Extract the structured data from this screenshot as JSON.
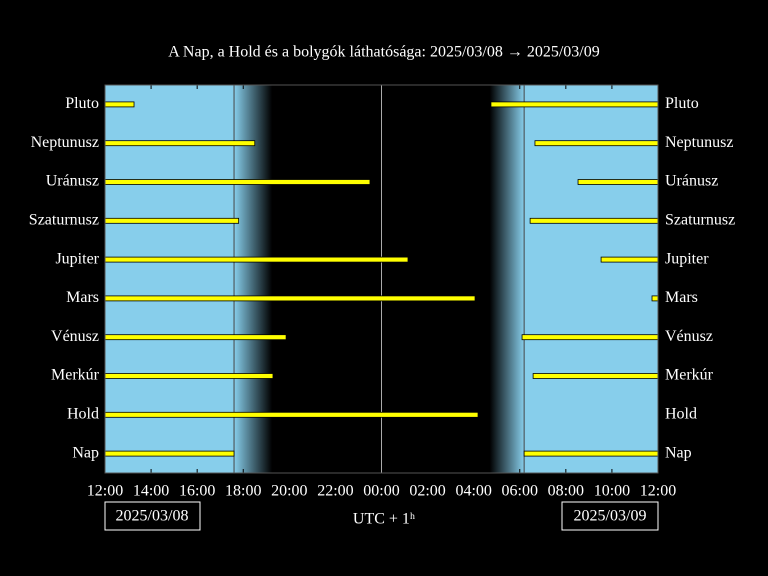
{
  "chart_data": {
    "type": "range",
    "title": "A Nap, a Hold és a bolygók láthatósága: 2025/03/08 → 2025/03/09",
    "xlabel": "UTC + 1ʰ",
    "start_date": "2025/03/08",
    "end_date": "2025/03/09",
    "categories": [
      "Pluto",
      "Neptunusz",
      "Uránusz",
      "Szaturnusz",
      "Jupiter",
      "Mars",
      "Vénusz",
      "Merkúr",
      "Hold",
      "Nap"
    ],
    "ranges": [
      [
        [
          12,
          13.26
        ],
        [
          28.75,
          36
        ]
      ],
      [
        [
          12,
          18.5
        ],
        [
          30.66,
          36
        ]
      ],
      [
        [
          12,
          23.5
        ],
        [
          32.53,
          36
        ]
      ],
      [
        [
          12,
          17.8
        ],
        [
          30.45,
          36
        ]
      ],
      [
        [
          12,
          25.15
        ],
        [
          33.53,
          36
        ]
      ],
      [
        [
          12,
          28.06
        ],
        [
          35.74,
          36
        ]
      ],
      [
        [
          12,
          19.86
        ],
        [
          30.1,
          36
        ]
      ],
      [
        [
          12,
          19.29
        ],
        [
          30.58,
          36
        ]
      ],
      [
        [
          12,
          28.19
        ]
      ],
      [
        [
          12,
          17.6
        ],
        [
          30.19,
          36
        ]
      ]
    ],
    "night": [
      19.25,
      28.7
    ],
    "color": "#ffff00",
    "day_color": "#87ceeb",
    "night_color": "#000000",
    "xlim": [
      12,
      36
    ],
    "xticks": [
      {
        "value": 12,
        "label": "12:00"
      },
      {
        "value": 14,
        "label": "14:00"
      },
      {
        "value": 16,
        "label": "16:00"
      },
      {
        "value": 18,
        "label": "18:00"
      },
      {
        "value": 20,
        "label": "20:00"
      },
      {
        "value": 22,
        "label": "22:00"
      },
      {
        "value": 24,
        "label": "00:00"
      },
      {
        "value": 26,
        "label": "02:00"
      },
      {
        "value": 28,
        "label": "04:00"
      },
      {
        "value": 30,
        "label": "06:00"
      },
      {
        "value": 32,
        "label": "08:00"
      },
      {
        "value": 34,
        "label": "10:00"
      },
      {
        "value": 36,
        "label": "12:00"
      }
    ]
  }
}
